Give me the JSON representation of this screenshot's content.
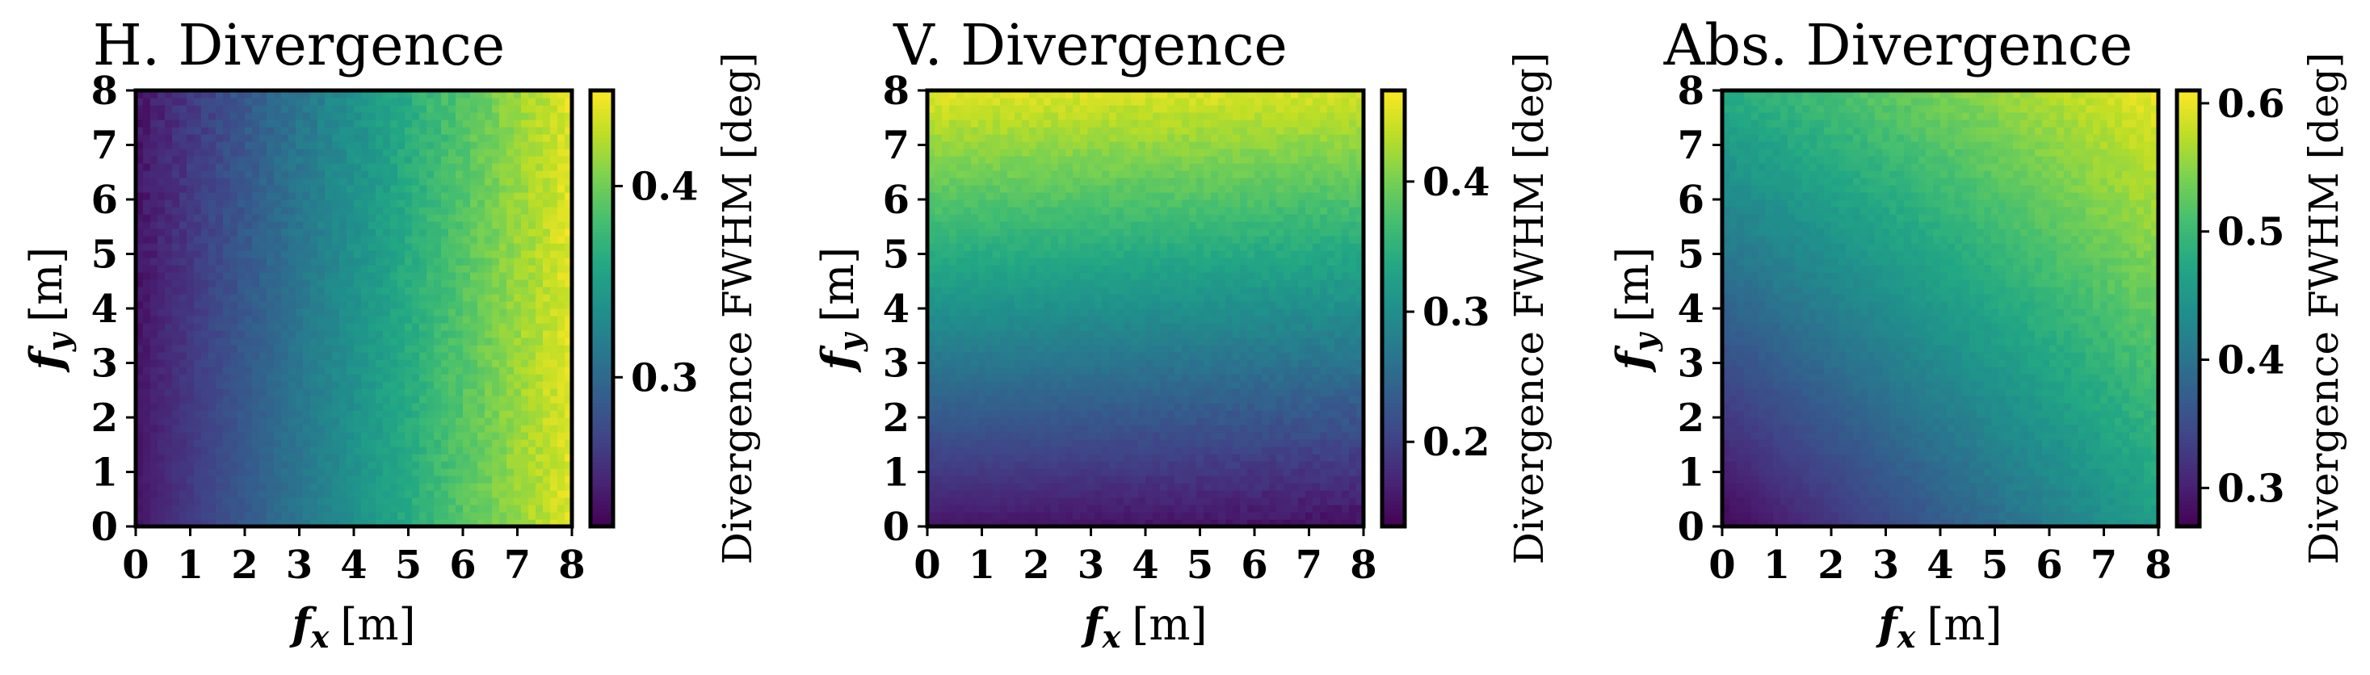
{
  "figure": {
    "colormap": "viridis",
    "x_label_var": "f",
    "x_label_sub": "x",
    "x_label_unit": "[m]",
    "y_label_var": "f",
    "y_label_sub": "y",
    "y_label_unit": "[m]",
    "colorbar_label": "Divergence FWHM [deg]"
  },
  "chart_data": [
    {
      "type": "heatmap",
      "title": "H. Divergence",
      "x_ticks": [
        "0",
        "1",
        "2",
        "3",
        "4",
        "5",
        "6",
        "7",
        "8"
      ],
      "y_ticks": [
        "0",
        "1",
        "2",
        "3",
        "4",
        "5",
        "6",
        "7",
        "8"
      ],
      "xlim": [
        0,
        8
      ],
      "ylim": [
        0,
        8
      ],
      "grid_resolution": 60,
      "field": {
        "corners": {
          "x0y0": 0.235,
          "x8y0": 0.44,
          "x0y8": 0.235,
          "x8y8": 0.44
        },
        "trend": "increases with f_x (left to right), weak f_y dependence"
      },
      "colorbar": {
        "range": [
          0.222,
          0.45
        ],
        "ticks": [
          "0.3",
          "0.4"
        ],
        "tick_values": [
          0.3,
          0.4
        ]
      }
    },
    {
      "type": "heatmap",
      "title": "V. Divergence",
      "x_ticks": [
        "0",
        "1",
        "2",
        "3",
        "4",
        "5",
        "6",
        "7",
        "8"
      ],
      "y_ticks": [
        "0",
        "1",
        "2",
        "3",
        "4",
        "5",
        "6",
        "7",
        "8"
      ],
      "xlim": [
        0,
        8
      ],
      "ylim": [
        0,
        8
      ],
      "grid_resolution": 60,
      "field": {
        "corners": {
          "x0y0": 0.155,
          "x8y0": 0.15,
          "x0y8": 0.455,
          "x8y8": 0.45
        },
        "trend": "increases with f_y (bottom to top), weak f_x dependence"
      },
      "colorbar": {
        "range": [
          0.135,
          0.47
        ],
        "ticks": [
          "0.2",
          "0.3",
          "0.4"
        ],
        "tick_values": [
          0.2,
          0.3,
          0.4
        ]
      }
    },
    {
      "type": "heatmap",
      "title": "Abs. Divergence",
      "x_ticks": [
        "0",
        "1",
        "2",
        "3",
        "4",
        "5",
        "6",
        "7",
        "8"
      ],
      "y_ticks": [
        "0",
        "1",
        "2",
        "3",
        "4",
        "5",
        "6",
        "7",
        "8"
      ],
      "xlim": [
        0,
        8
      ],
      "ylim": [
        0,
        8
      ],
      "grid_resolution": 60,
      "field": {
        "corners": {
          "x0y0": 0.275,
          "x8y0": 0.46,
          "x0y8": 0.48,
          "x8y8": 0.6
        },
        "trend": "increases toward the top-right corner"
      },
      "colorbar": {
        "range": [
          0.27,
          0.61
        ],
        "ticks": [
          "0.3",
          "0.4",
          "0.5",
          "0.6"
        ],
        "tick_values": [
          0.3,
          0.4,
          0.5,
          0.6
        ]
      }
    }
  ]
}
